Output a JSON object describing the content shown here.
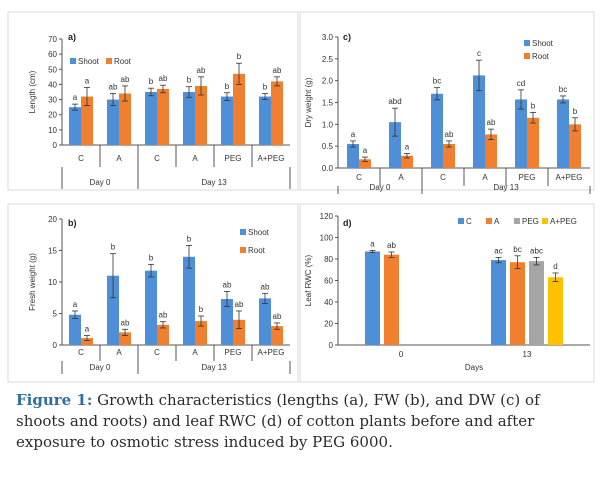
{
  "chart_data": [
    {
      "type": "bar",
      "panel_label": "a)",
      "ylabel": "Length (cm)",
      "ylim": [
        0,
        70
      ],
      "yticks": [
        0,
        10,
        20,
        30,
        40,
        50,
        60,
        70
      ],
      "categories": [
        "C",
        "A",
        "C",
        "A",
        "PEG",
        "A+PEG"
      ],
      "groups": [
        {
          "label": "Day 0",
          "count": 2
        },
        {
          "label": "Day 13",
          "count": 4
        }
      ],
      "legend_position": "top-left",
      "series": [
        {
          "name": "Shoot",
          "color": "#4f8fd8",
          "values": [
            25,
            30,
            35,
            35,
            32,
            32
          ],
          "errors": [
            2,
            4,
            2.5,
            3.5,
            2.5,
            2
          ],
          "letters": [
            "a",
            "ab",
            "b",
            "b",
            "b",
            "b"
          ]
        },
        {
          "name": "Root",
          "color": "#f08030",
          "values": [
            32,
            34,
            37,
            39,
            47,
            42
          ],
          "errors": [
            6,
            5,
            2.5,
            6,
            7,
            3
          ],
          "letters": [
            "a",
            "ab",
            "ab",
            "ab",
            "b",
            "ab"
          ]
        }
      ]
    },
    {
      "type": "bar",
      "panel_label": "c)",
      "ylabel": "Dry weight (g)",
      "ylim": [
        0,
        3.0
      ],
      "yticks": [
        "0.0",
        "0.5",
        "1.0",
        "1.5",
        "2.0",
        "2.5",
        "3.0"
      ],
      "categories": [
        "C",
        "A",
        "C",
        "A",
        "PEG",
        "A+PEG"
      ],
      "groups": [
        {
          "label": "Day 0",
          "count": 2
        },
        {
          "label": "Day 13",
          "count": 4
        }
      ],
      "legend_position": "top-right",
      "series": [
        {
          "name": "Shoot",
          "color": "#4f8fd8",
          "values": [
            0.55,
            1.05,
            1.7,
            2.12,
            1.57,
            1.57
          ],
          "errors": [
            0.07,
            0.32,
            0.14,
            0.35,
            0.22,
            0.08
          ],
          "letters": [
            "a",
            "abd",
            "bc",
            "c",
            "cd",
            "bc"
          ]
        },
        {
          "name": "Root",
          "color": "#f08030",
          "values": [
            0.2,
            0.28,
            0.55,
            0.77,
            1.15,
            1.0
          ],
          "errors": [
            0.05,
            0.05,
            0.07,
            0.12,
            0.12,
            0.15
          ],
          "letters": [
            "a",
            "a",
            "ab",
            "ab",
            "b",
            "b"
          ]
        }
      ]
    },
    {
      "type": "bar",
      "panel_label": "b)",
      "ylabel": "Fresh weight (g)",
      "ylim": [
        0,
        20
      ],
      "yticks": [
        0,
        5,
        10,
        15,
        20
      ],
      "categories": [
        "C",
        "A",
        "C",
        "A",
        "PEG",
        "A+PEG"
      ],
      "groups": [
        {
          "label": "Day 0",
          "count": 2
        },
        {
          "label": "Day 13",
          "count": 4
        }
      ],
      "legend_position": "top-right",
      "series": [
        {
          "name": "Shoot",
          "color": "#4f8fd8",
          "values": [
            4.8,
            11.0,
            11.8,
            14.0,
            7.3,
            7.4
          ],
          "errors": [
            0.6,
            3.5,
            1.0,
            1.8,
            1.2,
            0.8
          ],
          "letters": [
            "a",
            "b",
            "b",
            "b",
            "ab",
            "ab"
          ]
        },
        {
          "name": "Root",
          "color": "#f08030",
          "values": [
            1.1,
            2.0,
            3.2,
            3.8,
            4.0,
            3.0
          ],
          "errors": [
            0.4,
            0.5,
            0.5,
            0.8,
            1.4,
            0.5
          ],
          "letters": [
            "a",
            "ab",
            "ab",
            "b",
            "ab",
            "ab"
          ]
        }
      ]
    },
    {
      "type": "bar",
      "panel_label": "d)",
      "ylabel": "Leaf RWC (%)",
      "xlabel": "Days",
      "ylim": [
        0,
        120
      ],
      "yticks": [
        0,
        20,
        40,
        60,
        80,
        100,
        120
      ],
      "categories": [
        "0",
        "13"
      ],
      "legend_position": "top-right",
      "series": [
        {
          "name": "C",
          "color": "#4f8fd8",
          "values": [
            87,
            79
          ],
          "errors": [
            1,
            2.5
          ],
          "letters": [
            "a",
            "ac"
          ]
        },
        {
          "name": "A",
          "color": "#f08030",
          "values": [
            84,
            77
          ],
          "errors": [
            2.5,
            6
          ],
          "letters": [
            "ab",
            "bc"
          ]
        },
        {
          "name": "PEG",
          "color": "#a5a5a5",
          "values": [
            null,
            78
          ],
          "errors": [
            null,
            3.5
          ],
          "letters": [
            null,
            "abc"
          ]
        },
        {
          "name": "A+PEG",
          "color": "#ffc000",
          "values": [
            null,
            63
          ],
          "errors": [
            null,
            4
          ],
          "letters": [
            null,
            "d"
          ]
        }
      ]
    }
  ],
  "caption": {
    "bold": "Figure 1:",
    "text": " Growth characteristics (lengths (a), FW (b), and DW (c) of shoots and roots) and leaf RWC (d) of cotton plants before and after exposure to osmotic stress induced by PEG 6000."
  }
}
